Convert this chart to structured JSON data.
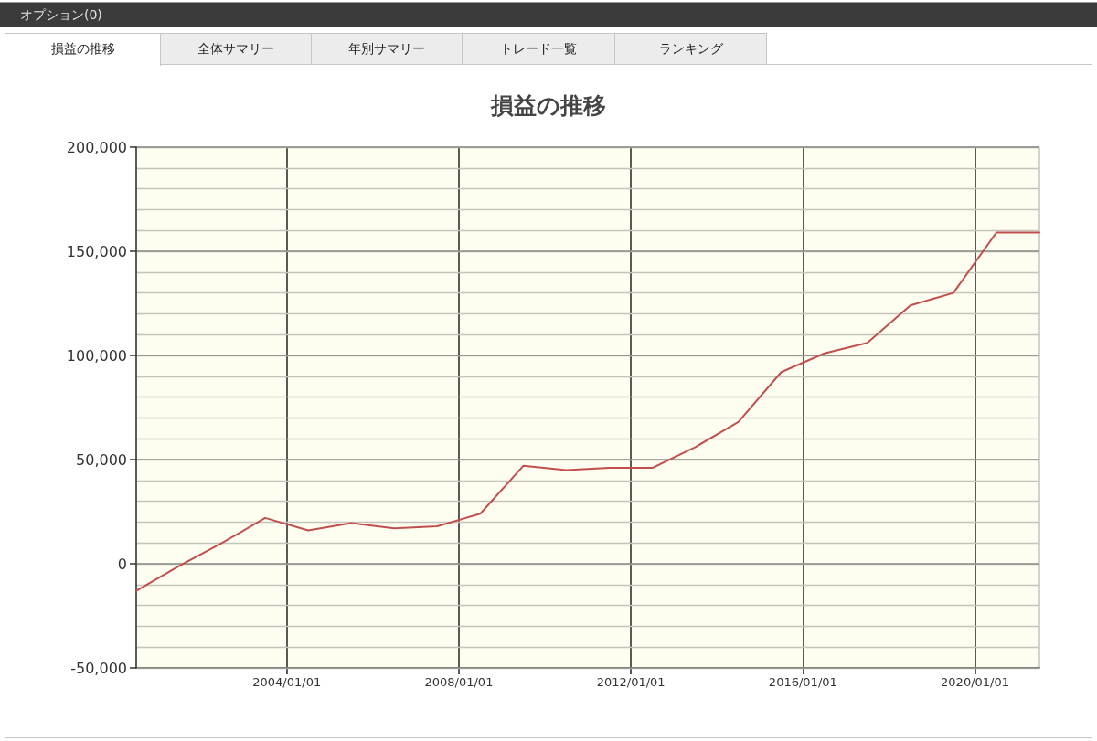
{
  "chart_data": {
    "type": "line",
    "title": "損益の推移",
    "annotations": [
      "オプション(0)",
      "損益の推移",
      "全体サマリー",
      "年別サマリー",
      "トレード一覧",
      "ランキング"
    ],
    "x": [
      "2000-07-01",
      "2001-07-01",
      "2002-07-01",
      "2003-07-01",
      "2004-07-01",
      "2005-07-01",
      "2006-07-01",
      "2007-07-01",
      "2008-07-01",
      "2009-07-01",
      "2010-07-01",
      "2011-07-01",
      "2012-07-01",
      "2013-07-01",
      "2014-07-01",
      "2015-07-01",
      "2016-07-01",
      "2017-07-01",
      "2018-07-01",
      "2019-07-01",
      "2020-07-01",
      "2021-07-01"
    ],
    "values": [
      -13000,
      -1000,
      10000,
      22000,
      16000,
      19500,
      17000,
      18000,
      24000,
      47000,
      45000,
      46000,
      46000,
      56000,
      68000,
      92000,
      101000,
      106000,
      124000,
      130000,
      159000,
      159000
    ],
    "color": "#c0504d",
    "marker": "none",
    "line_style": "solid",
    "xlim": [
      "2000-07-01",
      "2021-07-01"
    ],
    "xticks": [
      {
        "value": "2004-01-01",
        "label": "2004/01/01"
      },
      {
        "value": "2008-01-01",
        "label": "2008/01/01"
      },
      {
        "value": "2012-01-01",
        "label": "2012/01/01"
      },
      {
        "value": "2016-01-01",
        "label": "2016/01/01"
      },
      {
        "value": "2020-01-01",
        "label": "2020/01/01"
      }
    ],
    "ylim": [
      -50000,
      200000
    ],
    "yticks": [
      {
        "value": -50000,
        "label": "-50,000"
      },
      {
        "value": -40000,
        "label": null
      },
      {
        "value": -30000,
        "label": null
      },
      {
        "value": -20000,
        "label": null
      },
      {
        "value": -10000,
        "label": null
      },
      0,
      {
        "value": 10000,
        "label": null
      },
      {
        "value": 20000,
        "label": null
      },
      {
        "value": 30000,
        "label": null
      },
      {
        "value": 40000,
        "label": null
      },
      {
        "value": 50000,
        "label": "50,000"
      },
      {
        "value": 60000,
        "label": null
      },
      {
        "value": 70000,
        "label": null
      },
      {
        "value": 80000,
        "label": null
      },
      {
        "value": 90000,
        "label": null
      },
      {
        "value": 100000,
        "label": "100,000"
      },
      {
        "value": 110000,
        "label": null
      },
      {
        "value": 120000,
        "label": null
      },
      {
        "value": 130000,
        "label": null
      },
      {
        "value": 140000,
        "label": null
      },
      {
        "value": 150000,
        "label": "150,000"
      },
      {
        "value": 160000,
        "label": null
      },
      {
        "value": 170000,
        "label": null
      },
      {
        "value": 180000,
        "label": null
      },
      {
        "value": 190000,
        "label": null
      },
      {
        "value": 200000,
        "label": "200,000"
      }
    ],
    "grid": true
  }
}
